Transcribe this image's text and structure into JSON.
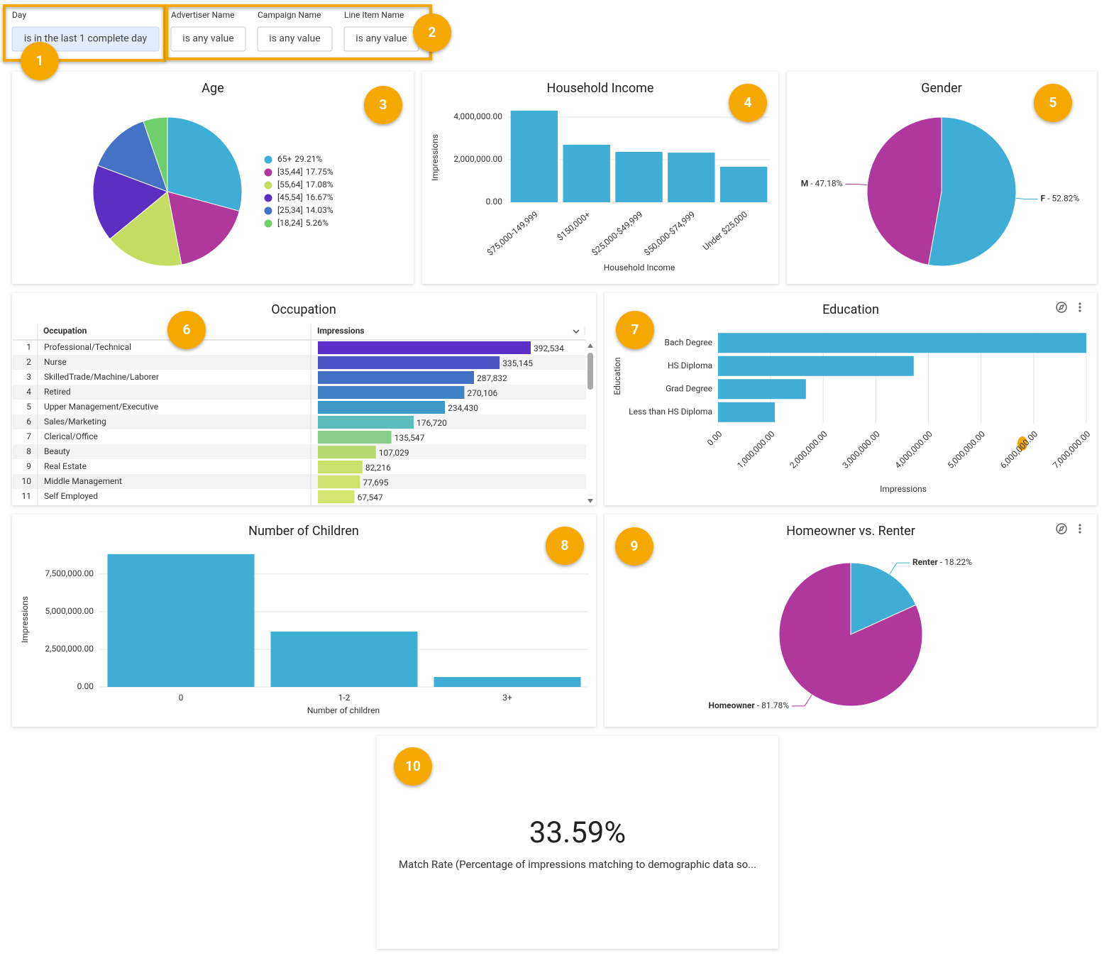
{
  "filters": [
    {
      "label": "Day",
      "value": "is in the last 1 complete day"
    },
    {
      "label": "Advertiser Name",
      "value": "is any value"
    },
    {
      "label": "Campaign Name",
      "value": "is any value"
    },
    {
      "label": "Line Item Name",
      "value": "is any value"
    }
  ],
  "callouts": [
    "1",
    "2",
    "3",
    "4",
    "5",
    "6",
    "7",
    "8",
    "9",
    "10"
  ],
  "age": {
    "type": "pie",
    "title": "Age",
    "categories": [
      "65+",
      "[35,44]",
      "[55,64]",
      "[45,54]",
      "[25,34]",
      "[18,24]"
    ],
    "values": [
      29.21,
      17.75,
      17.08,
      16.67,
      14.03,
      5.26
    ],
    "value_labels": [
      "29.21%",
      "17.75%",
      "17.08%",
      "16.67%",
      "14.03%",
      "5.26%"
    ],
    "colors": [
      "#3eaed6",
      "#b0379c",
      "#c5dc63",
      "#5a2fc2",
      "#4472c4",
      "#6fcf6a"
    ],
    "legend": "right"
  },
  "household_income": {
    "type": "bar",
    "title": "Household Income",
    "x_label": "Household Income",
    "y_label": "Impressions",
    "categories": [
      "$75,000-149,999",
      "$150,000+",
      "$25,000-$49,999",
      "$50,000-$74,999",
      "Under $25,000"
    ],
    "values": [
      4300000,
      2700000,
      2370000,
      2330000,
      1670000
    ],
    "color": "#3eaed6",
    "ylim": [
      0,
      4500000
    ],
    "yticks": [
      {
        "value": 0,
        "label": "0.00"
      },
      {
        "value": 2000000,
        "label": "2,000,000.00"
      },
      {
        "value": 4000000,
        "label": "4,000,000.00"
      }
    ],
    "grid": true
  },
  "gender": {
    "type": "pie",
    "title": "Gender",
    "categories": [
      "F",
      "M"
    ],
    "values": [
      52.82,
      47.18
    ],
    "value_labels": [
      "52.82%",
      "47.18%"
    ],
    "label_separator": " - ",
    "colors": [
      "#3eaed6",
      "#b0379c"
    ]
  },
  "occupation": {
    "type": "table",
    "title": "Occupation",
    "columns": [
      "Occupation",
      "Impressions"
    ],
    "row_numbers": [
      1,
      2,
      3,
      4,
      5,
      6,
      7,
      8,
      9,
      10,
      11
    ],
    "categories": [
      "Professional/Technical",
      "Nurse",
      "SkilledTrade/Machine/Laborer",
      "Retired",
      "Upper Management/Executive",
      "Sales/Marketing",
      "Clerical/Office",
      "Beauty",
      "Real Estate",
      "Middle Management",
      "Self Employed"
    ],
    "values": [
      392534,
      335145,
      287832,
      270106,
      234430,
      176720,
      135547,
      107029,
      82216,
      77695,
      67547
    ],
    "value_labels": [
      "392,534",
      "335,145",
      "287,832",
      "270,106",
      "234,430",
      "176,720",
      "135,547",
      "107,029",
      "82,216",
      "77,695",
      "67,547"
    ],
    "colors": [
      "#5b2fc9",
      "#4c53c4",
      "#4270c4",
      "#3f82c6",
      "#3e99c8",
      "#5bbcbb",
      "#8ccf8a",
      "#b6d86f",
      "#c9e06a",
      "#cfe36c",
      "#d3e56e"
    ]
  },
  "education": {
    "type": "hbar",
    "title": "Education",
    "x_label": "Impressions",
    "y_label": "Education",
    "categories": [
      "Bach Degree",
      "HS Diploma",
      "Grad Degree",
      "Less than HS Diploma"
    ],
    "values": [
      7000000,
      3720000,
      1670000,
      1080000
    ],
    "color": "#3eaed6",
    "xlim": [
      0,
      7000000
    ],
    "xticks": [
      {
        "value": 0,
        "label": "0.00"
      },
      {
        "value": 1000000,
        "label": "1,000,000.00"
      },
      {
        "value": 2000000,
        "label": "2,000,000.00"
      },
      {
        "value": 3000000,
        "label": "3,000,000.00"
      },
      {
        "value": 4000000,
        "label": "4,000,000.00"
      },
      {
        "value": 5000000,
        "label": "5,000,000.00"
      },
      {
        "value": 6000000,
        "label": "6,000,000.00"
      },
      {
        "value": 7000000,
        "label": "7,000,000.00"
      }
    ],
    "grid": true
  },
  "children": {
    "type": "bar",
    "title": "Number of Children",
    "x_label": "Number of children",
    "y_label": "Impressions",
    "categories": [
      "0",
      "1-2",
      "3+"
    ],
    "values": [
      8820000,
      3680000,
      660000
    ],
    "color": "#3eaed6",
    "ylim": [
      0,
      9000000
    ],
    "yticks": [
      {
        "value": 0,
        "label": "0.00"
      },
      {
        "value": 2500000,
        "label": "2,500,000.00"
      },
      {
        "value": 5000000,
        "label": "5,000,000.00"
      },
      {
        "value": 7500000,
        "label": "7,500,000.00"
      }
    ],
    "grid": true
  },
  "homeowner": {
    "type": "pie",
    "title": "Homeowner vs. Renter",
    "categories": [
      "Renter",
      "Homeowner"
    ],
    "values": [
      18.22,
      81.78
    ],
    "value_labels": [
      "18.22%",
      "81.78%"
    ],
    "label_separator": " - ",
    "colors": [
      "#3eaed6",
      "#b0379c"
    ]
  },
  "match_rate": {
    "value": 33.59,
    "value_label": "33.59%",
    "caption": "Match Rate (Percentage of impressions matching to demographic data so..."
  }
}
